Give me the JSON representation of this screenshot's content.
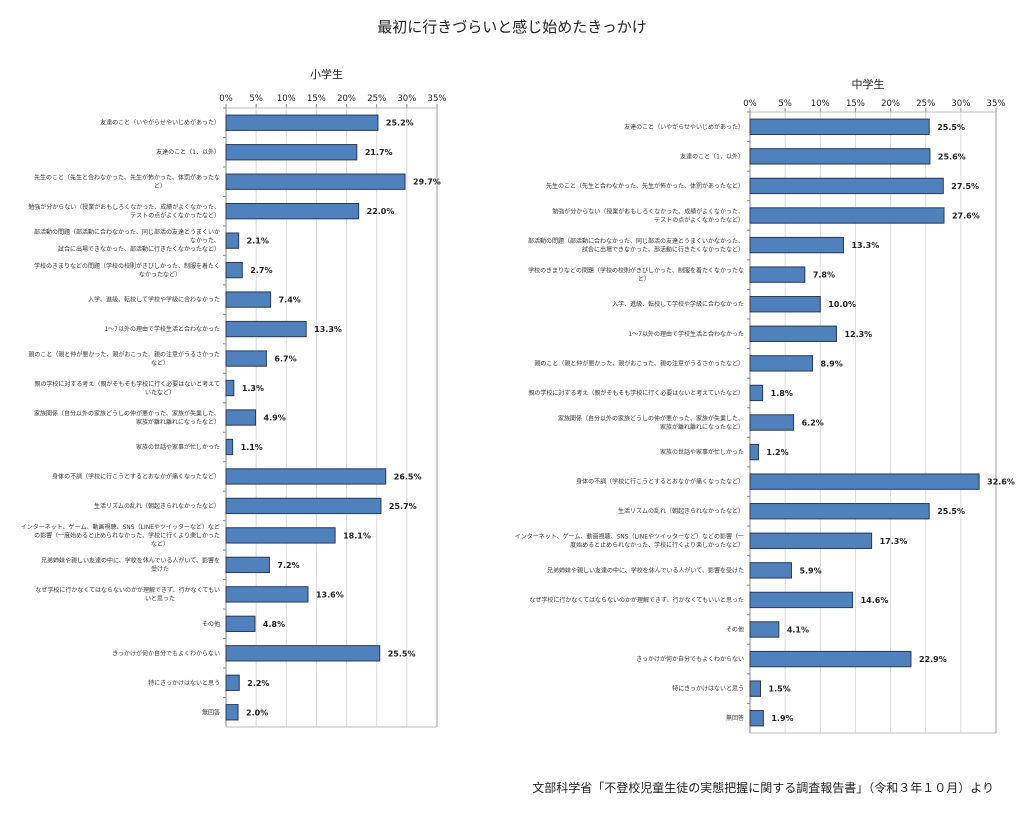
{
  "title": "最初に行きづらいと感じ始めたきっかけ",
  "source": "文部科学省「不登校児童生徒の実態把握に関する調査報告書」（令和３年１０月）より",
  "colors": {
    "bar": "#4f81bd",
    "bar_border": "#2b3a55",
    "grid": "#d9d9d9",
    "axis": "#888888"
  },
  "chart_data": [
    {
      "type": "bar",
      "orientation": "horizontal",
      "title": "小学生",
      "xlabel": "",
      "ylabel": "",
      "xlim": [
        0,
        35
      ],
      "x_ticks": [
        "0%",
        "5%",
        "10%",
        "15%",
        "20%",
        "25%",
        "30%",
        "35%"
      ],
      "grid": true,
      "categories": [
        [
          "友達のこと（いやがらせやいじめがあった）"
        ],
        [
          "友達のこと（1．以外）"
        ],
        [
          "先生のこと（先生と合わなかった、先生が怖かった、体罰があったな",
          "ど）"
        ],
        [
          "勉強が分からない（授業がおもしろくなかった、成績がよくなかった、",
          "テストの点がよくなかったなど）"
        ],
        [
          "部活動の問題（部活動に合わなかった、同じ部活の友達とうまくいか",
          "なかった、",
          "試合に出場できなかった、部活動に行きたくなかったなど）"
        ],
        [
          "学校のきまりなどの問題（学校の校則がきびしかった、制服を着たく",
          "なかったなど）"
        ],
        [
          "入学、進級、転校して学校や学級に合わなかった"
        ],
        [
          "1～7以外の理由で学校生活と合わなかった"
        ],
        [
          "親のこと（親と仲が悪かった、親がおこった、親の注意がうるさかった",
          "など）"
        ],
        [
          "親の学校に対する考え（親がそもそも学校に行く必要はないと考えて",
          "いたなど）"
        ],
        [
          "家族関係（自分以外の家族どうしの仲が悪かった、家族が失業した、",
          "家族が離れ離れになったなど）"
        ],
        [
          "家族の世話や家事が忙しかった"
        ],
        [
          "身体の不調（学校に行こうとするとおなかが痛くなったなど）"
        ],
        [
          "生活リズムの乱れ（朝起きられなかったなど）"
        ],
        [
          "インターネット、ゲーム、動画視聴、SNS（LINEやツイッターなど）など",
          "の影響（一度始めると止められなかった、学校に行くより楽しかった",
          "など）"
        ],
        [
          "兄弟姉妹や親しい友達の中に、学校を休んでいる人がいて、影響を",
          "受けた"
        ],
        [
          "なぜ学校に行かなくてはならないのかが理解できず、行かなくてもい",
          "いと思った"
        ],
        [
          "その他"
        ],
        [
          "きっかけが何か自分でもよくわからない"
        ],
        [
          "特にきっかけはないと思う"
        ],
        [
          "無回答"
        ]
      ],
      "values": [
        25.2,
        21.7,
        29.7,
        22.0,
        2.1,
        2.7,
        7.4,
        13.3,
        6.7,
        1.3,
        4.9,
        1.1,
        26.5,
        25.7,
        18.1,
        7.2,
        13.6,
        4.8,
        25.5,
        2.2,
        2.0
      ],
      "value_labels": [
        "25.2%",
        "21.7%",
        "29.7%",
        "22.0%",
        "2.1%",
        "2.7%",
        "7.4%",
        "13.3%",
        "6.7%",
        "1.3%",
        "4.9%",
        "1.1%",
        "26.5%",
        "25.7%",
        "18.1%",
        "7.2%",
        "13.6%",
        "4.8%",
        "25.5%",
        "2.2%",
        "2.0%"
      ]
    },
    {
      "type": "bar",
      "orientation": "horizontal",
      "title": "中学生",
      "xlabel": "",
      "ylabel": "",
      "xlim": [
        0,
        35
      ],
      "x_ticks": [
        "0%",
        "5%",
        "10%",
        "15%",
        "20%",
        "25%",
        "30%",
        "35%"
      ],
      "grid": true,
      "categories": [
        [
          "友達のこと（いやがらせやいじめがあった）"
        ],
        [
          "友達のこと（1．以外）"
        ],
        [
          "先生のこと（先生と合わなかった、先生が怖かった、体罰があったなど）"
        ],
        [
          "勉強が分からない（授業がおもしろくなかった、成績がよくなかった、",
          "テストの点がよくなかったなど）"
        ],
        [
          "部活動の問題（部活動に合わなかった、同じ部活の友達とうまくいかなかった、",
          "試合に出場できなかった、部活動に行きたくなかったなど）"
        ],
        [
          "学校のきまりなどの問題（学校の校則がきびしかった、制服を着たくなかったな",
          "ど）"
        ],
        [
          "入学、進級、転校して学校や学級に合わなかった"
        ],
        [
          "1～7以外の理由で学校生活と合わなかった"
        ],
        [
          "親のこと（親と仲が悪かった、親がおこった、親の注意がうるさかったなど）"
        ],
        [
          "親の学校に対する考え（親がそもそも学校に行く必要はないと考えていたなど）"
        ],
        [
          "家族関係（自分以外の家族どうしの仲が悪かった、家族が失業した、",
          "家族が離れ離れになったなど）"
        ],
        [
          "家族の世話や家事が忙しかった"
        ],
        [
          "身体の不調（学校に行こうとするとおなかが痛くなったなど）"
        ],
        [
          "生活リズムの乱れ（朝起きられなかったなど）"
        ],
        [
          "インターネット、ゲーム、動画視聴、SNS（LINEやツイッターなど）などの影響（一",
          "度始めると止められなかった、学校に行くより楽しかったなど）"
        ],
        [
          "兄弟姉妹や親しい友達の中に、学校を休んでいる人がいて、影響を受けた"
        ],
        [
          "なぜ学校に行かなくてはならないのかが理解できず、行かなくてもいいと思った"
        ],
        [
          "その他"
        ],
        [
          "きっかけが何か自分でもよくわからない"
        ],
        [
          "特にきっかけはないと思う"
        ],
        [
          "無回答"
        ]
      ],
      "values": [
        25.5,
        25.6,
        27.5,
        27.6,
        13.3,
        7.8,
        10.0,
        12.3,
        8.9,
        1.8,
        6.2,
        1.2,
        32.6,
        25.5,
        17.3,
        5.9,
        14.6,
        4.1,
        22.9,
        1.5,
        1.9
      ],
      "value_labels": [
        "25.5%",
        "25.6%",
        "27.5%",
        "27.6%",
        "13.3%",
        "7.8%",
        "10.0%",
        "12.3%",
        "8.9%",
        "1.8%",
        "6.2%",
        "1.2%",
        "32.6%",
        "25.5%",
        "17.3%",
        "5.9%",
        "14.6%",
        "4.1%",
        "22.9%",
        "1.5%",
        "1.9%"
      ]
    }
  ]
}
